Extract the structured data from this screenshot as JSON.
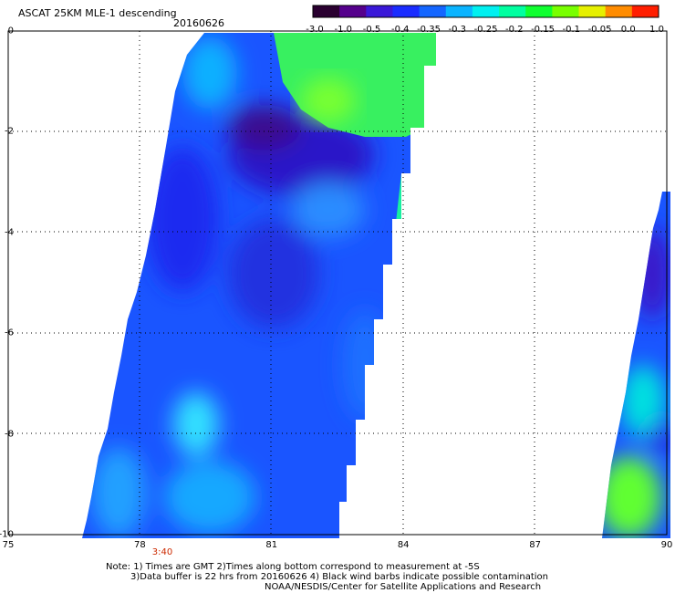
{
  "header": {
    "title": "ASCAT 25KM MLE-1 descending",
    "date": "20160626"
  },
  "colorbar": {
    "labels": [
      "-3.0",
      "-1.0",
      "-0.5",
      "-0.4",
      "-0.35",
      "-0.3",
      "-0.25",
      "-0.2",
      "-0.15",
      "-0.1",
      "-0.05",
      "0.0",
      "1.0"
    ],
    "colors": [
      "#2a0030",
      "#55008c",
      "#3a18d8",
      "#1a2cff",
      "#1466ff",
      "#0ab4ff",
      "#00f0f0",
      "#00ffa0",
      "#10ff30",
      "#78ff00",
      "#e6f000",
      "#ff8c00",
      "#ff1e00"
    ]
  },
  "map": {
    "lon_range": [
      75,
      90
    ],
    "lat_range": [
      0,
      -10
    ],
    "x_ticks": [
      "75",
      "78",
      "81",
      "84",
      "87",
      "90"
    ],
    "y_ticks": [
      "0",
      "-2",
      "-4",
      "-6",
      "-8",
      "-10"
    ],
    "time_label": "3:40",
    "grid": true
  },
  "notes": {
    "line1": "Note: 1) Times are GMT 2)Times along bottom correspond to measurement at -5S",
    "line2": "3)Data buffer is 22 hrs from 20160626 4) Black wind barbs indicate possible contamination",
    "line3": "NOAA/NESDIS/Center for Satellite Applications and Research"
  }
}
